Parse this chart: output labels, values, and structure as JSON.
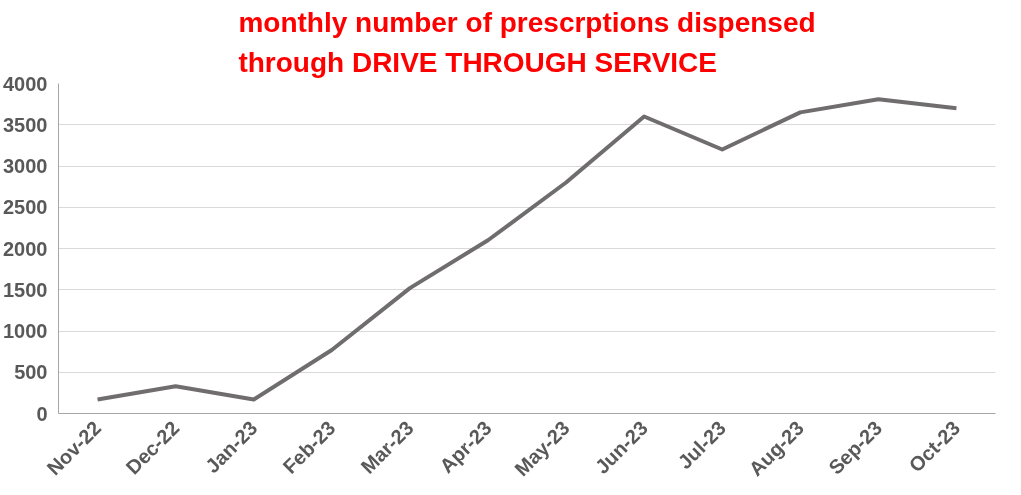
{
  "chart_data": {
    "type": "line",
    "title": "monthly number of prescrptions dispensed\nthrough DRIVE THROUGH SERVICE",
    "categories": [
      "Nov-22",
      "Dec-22",
      "Jan-23",
      "Feb-23",
      "Mar-23",
      "Apr-23",
      "May-23",
      "Jun-23",
      "Jul-23",
      "Aug-23",
      "Sep-23",
      "Oct-23"
    ],
    "series": [
      {
        "color": "#706d6e",
        "values": [
          170,
          330,
          170,
          770,
          1520,
          2100,
          2800,
          3600,
          3200,
          3650,
          3810,
          3700
        ]
      }
    ],
    "ylim": [
      0,
      4000
    ],
    "yticks": [
      0,
      500,
      1000,
      1500,
      2000,
      2500,
      3000,
      3500,
      4000
    ],
    "grid": "y",
    "marker": "none",
    "line_style": "solid"
  }
}
